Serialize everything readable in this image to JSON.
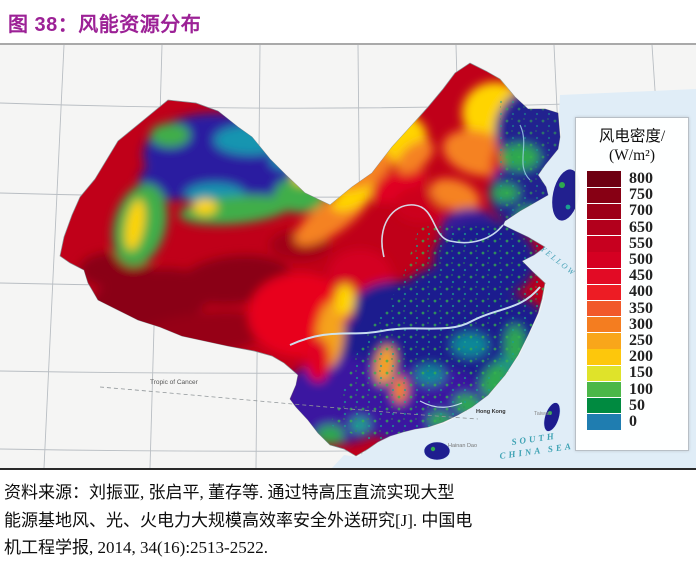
{
  "figure": {
    "title": "图 38：风能资源分布"
  },
  "map": {
    "labels": {
      "tropic_of_cancer": "Tropic of Cancer",
      "yellow_sea": "YELLOW SEA",
      "south_china_sea_1": "SOUTH",
      "south_china_sea_2": "CHINA SEA",
      "hainan_dao": "Hainan Dao",
      "hong_kong": "Hong Kong",
      "taiwan": "Taiwan"
    },
    "palette": {
      "sea": "#e0edf7",
      "background": "#f5f5f4",
      "density_high": "#8a0013",
      "density_low": "#1f7db0",
      "title_accent": "#9c2196"
    }
  },
  "legend": {
    "title_line1": "风电密度/",
    "title_line2": "(W/m²)",
    "entries": [
      {
        "value": "800",
        "color": "#6e0012"
      },
      {
        "value": "750",
        "color": "#870014"
      },
      {
        "value": "700",
        "color": "#9d0018"
      },
      {
        "value": "650",
        "color": "#b2001c"
      },
      {
        "value": "550",
        "color": "#c7001f"
      },
      {
        "value": "500",
        "color": "#d50022"
      },
      {
        "value": "450",
        "color": "#e20b25"
      },
      {
        "value": "400",
        "color": "#ed1c24"
      },
      {
        "value": "350",
        "color": "#f1592a"
      },
      {
        "value": "300",
        "color": "#f47d20"
      },
      {
        "value": "250",
        "color": "#f9a61a"
      },
      {
        "value": "200",
        "color": "#fdc70c"
      },
      {
        "value": "150",
        "color": "#dfe32a"
      },
      {
        "value": "100",
        "color": "#4bb748"
      },
      {
        "value": "50",
        "color": "#008a40"
      },
      {
        "value": "0",
        "color": "#1f7db0"
      }
    ]
  },
  "source": {
    "lines": [
      "资料来源：刘振亚, 张启平, 董存等. 通过特高压直流实现大型",
      "能源基地风、光、火电力大规模高效率安全外送研究[J]. 中国电",
      "机工程学报, 2014, 34(16):2513-2522."
    ]
  }
}
